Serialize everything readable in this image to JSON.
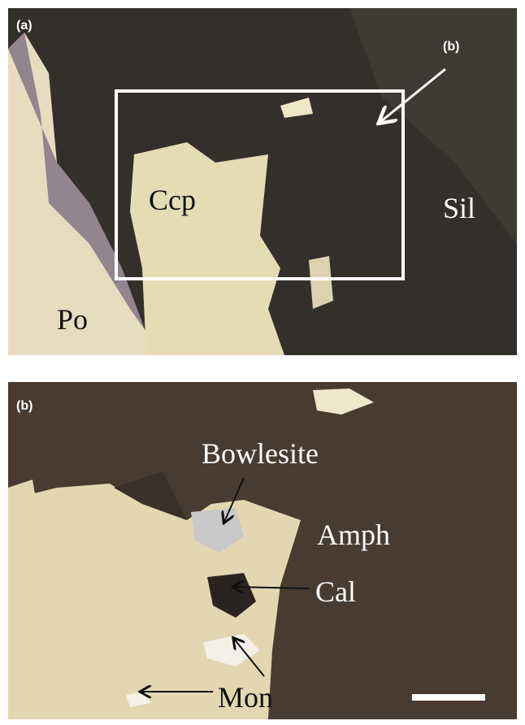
{
  "panels": [
    {
      "label": "(a)",
      "inset_label": "(b)",
      "annotations": [
        "Ccp",
        "Sil",
        "Po"
      ]
    },
    {
      "label": "(b)",
      "annotations": [
        "Bowlesite",
        "Amph",
        "Cal",
        "Mon"
      ]
    }
  ]
}
